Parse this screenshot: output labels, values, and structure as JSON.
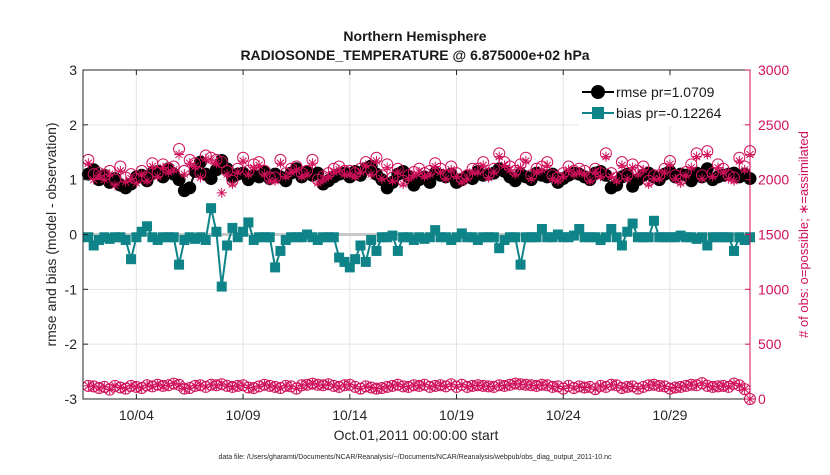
{
  "chart_data": {
    "type": "line",
    "title": "Northern Hemisphere",
    "subtitle": "RADIOSONDE_TEMPERATURE @ 6.875000e+02 hPa",
    "xlabel": "Oct.01,2011 00:00:00 start",
    "ylabel_left": "rmse and bias (model - observation)",
    "ylabel_right": "# of obs: o=possible; ∗=assimilated",
    "footnote": "data file: /Users/gharamti/Documents/NCAR/Reanalysis/~/Documents/NCAR/Reanalysis/webpub/obs_diag_output_2011-10.nc",
    "xlim": [
      0.5,
      31.75
    ],
    "ylim_left": [
      -3,
      3
    ],
    "ylim_right": [
      0,
      3000
    ],
    "x_ticks": [
      3,
      8,
      13,
      18,
      23,
      28
    ],
    "x_tick_labels": [
      "10/04",
      "10/09",
      "10/14",
      "10/19",
      "10/24",
      "10/29"
    ],
    "y_ticks_left": [
      -3,
      -2,
      -1,
      0,
      1,
      2,
      3
    ],
    "y_tick_labels_left": [
      "-3",
      "-2",
      "-1",
      "0",
      "1",
      "2",
      "3"
    ],
    "y_ticks_right": [
      0,
      500,
      1000,
      1500,
      2000,
      2500,
      3000
    ],
    "y_tick_labels_right": [
      "0",
      "500",
      "1000",
      "1500",
      "2000",
      "2500",
      "3000"
    ],
    "grid": true,
    "legend_position": "top-right",
    "x": [
      0.75,
      1.0,
      1.25,
      1.5,
      1.75,
      2.0,
      2.25,
      2.5,
      2.75,
      3.0,
      3.25,
      3.5,
      3.75,
      4.0,
      4.25,
      4.5,
      4.75,
      5.0,
      5.25,
      5.5,
      5.75,
      6.0,
      6.25,
      6.5,
      6.75,
      7.0,
      7.25,
      7.5,
      7.75,
      8.0,
      8.25,
      8.5,
      8.75,
      9.0,
      9.25,
      9.5,
      9.75,
      10.0,
      10.25,
      10.5,
      10.75,
      11.0,
      11.25,
      11.5,
      11.75,
      12.0,
      12.25,
      12.5,
      12.75,
      13.0,
      13.25,
      13.5,
      13.75,
      14.0,
      14.25,
      14.5,
      14.75,
      15.0,
      15.25,
      15.5,
      15.75,
      16.0,
      16.25,
      16.5,
      16.75,
      17.0,
      17.25,
      17.5,
      17.75,
      18.0,
      18.25,
      18.5,
      18.75,
      19.0,
      19.25,
      19.5,
      19.75,
      20.0,
      20.25,
      20.5,
      20.75,
      21.0,
      21.25,
      21.5,
      21.75,
      22.0,
      22.25,
      22.5,
      22.75,
      23.0,
      23.25,
      23.5,
      23.75,
      24.0,
      24.25,
      24.5,
      24.75,
      25.0,
      25.25,
      25.5,
      25.75,
      26.0,
      26.25,
      26.5,
      26.75,
      27.0,
      27.25,
      27.5,
      27.75,
      28.0,
      28.25,
      28.5,
      28.75,
      29.0,
      29.25,
      29.5,
      29.75,
      30.0,
      30.25,
      30.5,
      30.75,
      31.0,
      31.25,
      31.5,
      31.75
    ],
    "series": [
      {
        "name": "rmse pr=1.0709",
        "axis": "left",
        "marker": "circle",
        "color": "#000000",
        "values": [
          1.1,
          1.18,
          1.0,
          1.08,
          0.95,
          1.02,
          0.9,
          0.85,
          0.92,
          1.05,
          1.08,
          0.98,
          1.12,
          1.15,
          1.05,
          1.2,
          1.1,
          1.0,
          0.8,
          0.85,
          1.15,
          1.32,
          1.1,
          1.02,
          1.18,
          1.35,
          1.2,
          1.05,
          1.1,
          1.12,
          1.0,
          1.08,
          1.05,
          1.15,
          1.02,
          1.1,
          1.05,
          0.98,
          1.12,
          1.2,
          1.05,
          1.15,
          1.08,
          1.12,
          0.92,
          0.98,
          1.05,
          1.1,
          1.12,
          1.05,
          1.15,
          1.08,
          1.2,
          1.25,
          1.1,
          1.0,
          0.85,
          0.95,
          1.1,
          1.15,
          1.05,
          0.9,
          1.0,
          1.05,
          0.95,
          1.12,
          1.08,
          1.05,
          1.1,
          0.95,
          1.0,
          1.05,
          1.02,
          1.15,
          1.08,
          1.1,
          1.12,
          1.2,
          1.15,
          1.05,
          0.98,
          1.1,
          1.05,
          1.0,
          1.12,
          1.08,
          1.05,
          1.1,
          0.95,
          1.02,
          1.08,
          1.12,
          1.1,
          1.05,
          1.0,
          1.12,
          1.15,
          1.08,
          0.85,
          0.9,
          1.05,
          1.1,
          0.88,
          1.0,
          1.08,
          1.12,
          1.05,
          1.0,
          1.1,
          1.15,
          1.05,
          1.1,
          1.08,
          0.98,
          1.12,
          1.05,
          1.2,
          1.0,
          1.05,
          1.08,
          1.1,
          1.12,
          1.05,
          1.1,
          1.02
        ]
      },
      {
        "name": "bias pr=-0.12264",
        "axis": "left",
        "marker": "square",
        "color": "#0e8488",
        "values": [
          -0.05,
          -0.2,
          -0.1,
          -0.05,
          -0.08,
          -0.05,
          -0.05,
          -0.1,
          -0.45,
          -0.05,
          0.05,
          0.15,
          -0.05,
          -0.1,
          -0.05,
          -0.05,
          -0.05,
          -0.55,
          -0.1,
          -0.05,
          -0.08,
          -0.05,
          -0.1,
          0.48,
          0.05,
          -0.95,
          -0.2,
          0.12,
          -0.05,
          0.05,
          0.22,
          -0.1,
          -0.05,
          -0.05,
          -0.05,
          -0.6,
          -0.3,
          -0.1,
          -0.05,
          -0.05,
          -0.05,
          0.0,
          -0.05,
          -0.1,
          -0.05,
          -0.05,
          -0.05,
          -0.42,
          -0.5,
          -0.6,
          -0.45,
          -0.2,
          -0.5,
          -0.1,
          -0.3,
          -0.05,
          -0.05,
          -0.02,
          -0.3,
          -0.05,
          -0.05,
          -0.1,
          -0.05,
          -0.08,
          -0.05,
          0.08,
          -0.05,
          -0.05,
          -0.1,
          -0.05,
          0.02,
          -0.05,
          -0.05,
          -0.1,
          -0.05,
          -0.05,
          -0.05,
          -0.25,
          -0.1,
          -0.05,
          -0.05,
          -0.55,
          -0.05,
          -0.05,
          -0.05,
          0.1,
          -0.05,
          -0.05,
          0.0,
          -0.05,
          -0.05,
          -0.02,
          0.1,
          -0.05,
          -0.05,
          -0.05,
          -0.1,
          -0.05,
          0.1,
          -0.05,
          -0.2,
          0.05,
          0.2,
          -0.05,
          -0.05,
          -0.05,
          0.25,
          -0.05,
          -0.05,
          -0.05,
          -0.05,
          -0.02,
          -0.05,
          -0.05,
          -0.08,
          -0.05,
          -0.2,
          -0.05,
          -0.05,
          -0.05,
          -0.05,
          -0.3,
          -0.05,
          -0.1,
          -0.05
        ]
      },
      {
        "name": "# of obs possible",
        "axis": "right",
        "marker": "open-circle",
        "color": "#d0105a",
        "values": [
          2180,
          2050,
          2060,
          2040,
          2080,
          2000,
          2120,
          2020,
          2050,
          2010,
          2080,
          2020,
          2150,
          2060,
          2140,
          2100,
          2120,
          2280,
          2080,
          2180,
          2150,
          2060,
          2220,
          2200,
          2180,
          2160,
          2080,
          1990,
          2100,
          2200,
          2080,
          2140,
          2160,
          2080,
          2020,
          2020,
          2180,
          2060,
          2100,
          2120,
          2060,
          2080,
          2180,
          2000,
          2030,
          2060,
          2100,
          2120,
          2080,
          2080,
          2060,
          2100,
          2160,
          2080,
          2200,
          2040,
          2140,
          2020,
          2100,
          1990,
          2040,
          2070,
          2100,
          2060,
          2080,
          2150,
          2100,
          2040,
          2120,
          2060,
          2010,
          2040,
          2100,
          2100,
          2160,
          2050,
          2100,
          2240,
          2160,
          2120,
          2080,
          2140,
          2200,
          2040,
          2100,
          2120,
          2160,
          2040,
          2020,
          2060,
          2120,
          2080,
          2100,
          2080,
          2020,
          2100,
          2060,
          2240,
          2060,
          2020,
          2160,
          2040,
          2140,
          2080,
          2120,
          1990,
          2040,
          2040,
          2100,
          2170,
          2040,
          2000,
          2070,
          2140,
          2240,
          2040,
          2260,
          2060,
          2140,
          2100,
          2040,
          2020,
          2200,
          2120,
          2260
        ]
      },
      {
        "name": "# of obs assimilated",
        "axis": "right",
        "marker": "asterisk",
        "color": "#d0105a",
        "values": [
          2150,
          2000,
          2040,
          2000,
          2050,
          1950,
          2080,
          1980,
          2010,
          1970,
          2050,
          1990,
          2120,
          2030,
          2110,
          2070,
          2090,
          2230,
          2050,
          2150,
          2120,
          2020,
          2190,
          2180,
          2150,
          1880,
          2050,
          1960,
          2070,
          2170,
          2050,
          2110,
          2130,
          2050,
          1990,
          1990,
          2150,
          2030,
          2070,
          2090,
          2030,
          2050,
          2150,
          1970,
          2000,
          2030,
          2070,
          2090,
          2050,
          2050,
          2030,
          2070,
          2130,
          2050,
          2170,
          2010,
          2110,
          1990,
          2070,
          1960,
          2010,
          2040,
          2070,
          2030,
          2050,
          2120,
          2070,
          2010,
          2090,
          2030,
          1980,
          2010,
          2070,
          2070,
          2130,
          2020,
          2070,
          2210,
          2130,
          2090,
          2050,
          2110,
          2170,
          2010,
          2070,
          2090,
          2130,
          2010,
          1990,
          2030,
          2090,
          2050,
          2070,
          2050,
          1990,
          2070,
          2030,
          2210,
          2030,
          1990,
          2130,
          2010,
          2110,
          2050,
          2090,
          1960,
          2010,
          2010,
          2070,
          2140,
          2010,
          1970,
          2040,
          2110,
          2210,
          2010,
          2230,
          2030,
          2110,
          2070,
          2010,
          1990,
          2170,
          2090,
          2230
        ]
      },
      {
        "name": "# of obs possible (lower)",
        "axis": "right",
        "marker": "open-circle",
        "color": "#d0105a",
        "values": [
          120,
          115,
          100,
          110,
          85,
          120,
          105,
          95,
          120,
          110,
          100,
          125,
          115,
          130,
          120,
          125,
          140,
          130,
          95,
          100,
          120,
          125,
          110,
          130,
          125,
          135,
          120,
          110,
          120,
          125,
          105,
          100,
          115,
          130,
          120,
          110,
          100,
          120,
          115,
          95,
          125,
          130,
          140,
          130,
          125,
          135,
          120,
          110,
          125,
          130,
          110,
          95,
          115,
          105,
          95,
          100,
          110,
          120,
          130,
          115,
          110,
          125,
          120,
          130,
          110,
          120,
          125,
          115,
          135,
          110,
          130,
          110,
          120,
          125,
          120,
          115,
          110,
          125,
          120,
          130,
          140,
          135,
          130,
          125,
          120,
          130,
          125,
          110,
          115,
          95,
          120,
          100,
          115,
          105,
          110,
          90,
          120,
          110,
          130,
          125,
          100,
          110,
          115,
          95,
          110,
          125,
          130,
          120,
          115,
          95,
          105,
          110,
          120,
          130,
          125,
          145,
          120,
          110,
          115,
          120,
          110,
          140,
          125,
          90,
          0
        ]
      },
      {
        "name": "# of obs assimilated (lower)",
        "axis": "right",
        "marker": "asterisk",
        "color": "#d0105a",
        "values": [
          120,
          115,
          100,
          110,
          85,
          120,
          105,
          95,
          120,
          110,
          100,
          125,
          115,
          130,
          120,
          125,
          140,
          130,
          95,
          100,
          120,
          125,
          110,
          130,
          125,
          135,
          120,
          110,
          120,
          125,
          105,
          100,
          115,
          130,
          120,
          110,
          100,
          120,
          115,
          95,
          125,
          130,
          140,
          130,
          125,
          135,
          120,
          110,
          125,
          130,
          110,
          95,
          115,
          105,
          95,
          100,
          110,
          120,
          130,
          115,
          110,
          125,
          120,
          130,
          110,
          120,
          125,
          115,
          135,
          110,
          130,
          110,
          120,
          125,
          120,
          115,
          110,
          125,
          120,
          130,
          140,
          135,
          130,
          125,
          120,
          130,
          125,
          110,
          115,
          95,
          120,
          100,
          115,
          105,
          110,
          90,
          120,
          110,
          130,
          125,
          100,
          110,
          115,
          95,
          110,
          125,
          130,
          120,
          115,
          95,
          105,
          110,
          120,
          130,
          125,
          145,
          120,
          110,
          115,
          120,
          110,
          140,
          125,
          90,
          0
        ]
      }
    ],
    "legend": [
      {
        "label": "rmse pr=1.0709",
        "color": "#000000",
        "marker": "circle"
      },
      {
        "label": "bias pr=-0.12264",
        "color": "#0e8488",
        "marker": "square"
      }
    ]
  }
}
